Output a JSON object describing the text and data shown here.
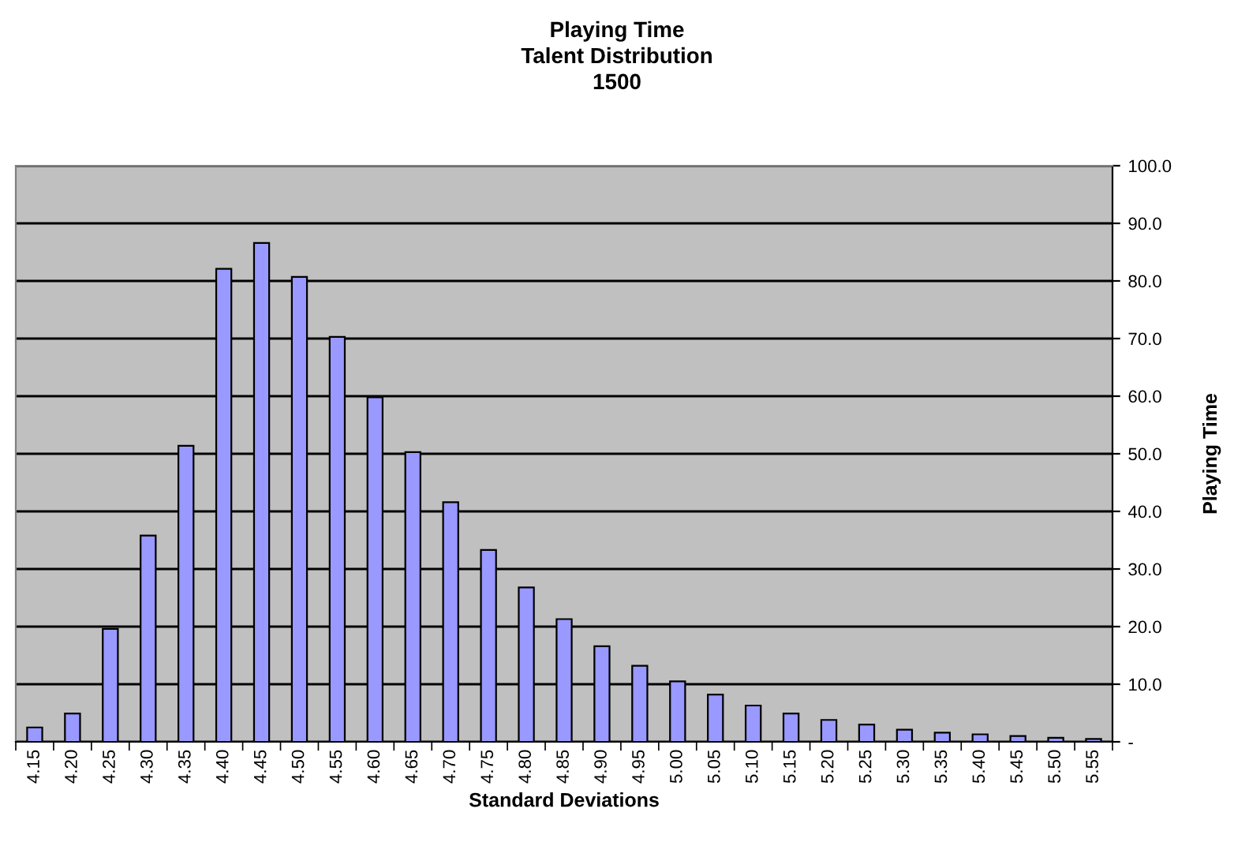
{
  "chart_data": {
    "type": "bar",
    "title": "Playing Time\nTalent Distribution\n1500",
    "xlabel": "Standard Deviations",
    "ylabel": "Playing Time",
    "categories": [
      "4.15",
      "4.20",
      "4.25",
      "4.30",
      "4.35",
      "4.40",
      "4.45",
      "4.50",
      "4.55",
      "4.60",
      "4.65",
      "4.70",
      "4.75",
      "4.80",
      "4.85",
      "4.90",
      "4.95",
      "5.00",
      "5.05",
      "5.10",
      "5.15",
      "5.20",
      "5.25",
      "5.30",
      "5.35",
      "5.40",
      "5.45",
      "5.50",
      "5.55"
    ],
    "values": [
      2.5,
      4.9,
      19.6,
      35.8,
      51.4,
      82.1,
      86.6,
      80.7,
      70.3,
      59.8,
      50.3,
      41.6,
      33.3,
      26.8,
      21.3,
      16.6,
      13.2,
      10.5,
      8.2,
      6.3,
      4.9,
      3.8,
      3.0,
      2.1,
      1.6,
      1.3,
      1.0,
      0.7,
      0.5
    ],
    "color": "#9999ff",
    "ylim": [
      0,
      100
    ],
    "yticks": [
      {
        "value": 0,
        "label": "-"
      },
      {
        "value": 10,
        "label": "10.0"
      },
      {
        "value": 20,
        "label": "20.0"
      },
      {
        "value": 30,
        "label": "30.0"
      },
      {
        "value": 40,
        "label": "40.0"
      },
      {
        "value": 50,
        "label": "50.0"
      },
      {
        "value": 60,
        "label": "60.0"
      },
      {
        "value": 70,
        "label": "70.0"
      },
      {
        "value": 80,
        "label": "80.0"
      },
      {
        "value": 90,
        "label": "90.0"
      },
      {
        "value": 100,
        "label": "100.0"
      }
    ],
    "grid": "y"
  }
}
